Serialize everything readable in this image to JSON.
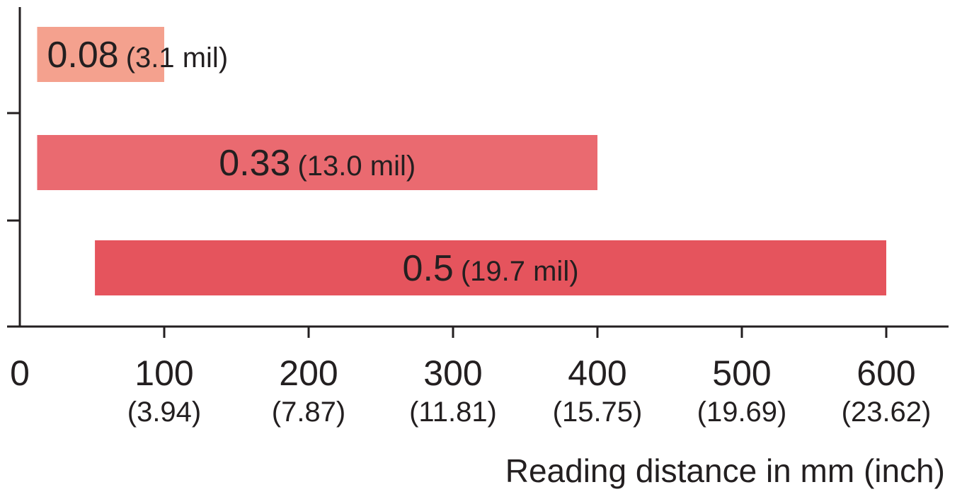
{
  "chart_data": {
    "type": "bar",
    "orientation": "horizontal",
    "xlabel": "Reading distance in mm (inch)",
    "xlim": [
      0,
      640
    ],
    "x_ticks": [
      {
        "value": 0,
        "label": "0",
        "sublabel": ""
      },
      {
        "value": 100,
        "label": "100",
        "sublabel": "(3.94)"
      },
      {
        "value": 200,
        "label": "200",
        "sublabel": "(7.87)"
      },
      {
        "value": 300,
        "label": "300",
        "sublabel": "(11.81)"
      },
      {
        "value": 400,
        "label": "400",
        "sublabel": "(15.75)"
      },
      {
        "value": 500,
        "label": "500",
        "sublabel": "(19.69)"
      },
      {
        "value": 600,
        "label": "600",
        "sublabel": "(23.62)"
      }
    ],
    "bars": [
      {
        "label": "0.08",
        "sublabel": "(3.1 mil)",
        "start": 12,
        "end": 100,
        "color": "#f4a18e"
      },
      {
        "label": "0.33",
        "sublabel": "(13.0 mil)",
        "start": 12,
        "end": 400,
        "color": "#ea6a70"
      },
      {
        "label": "0.5",
        "sublabel": "(19.7 mil)",
        "start": 52,
        "end": 600,
        "color": "#e5545d"
      }
    ],
    "grid": false
  }
}
